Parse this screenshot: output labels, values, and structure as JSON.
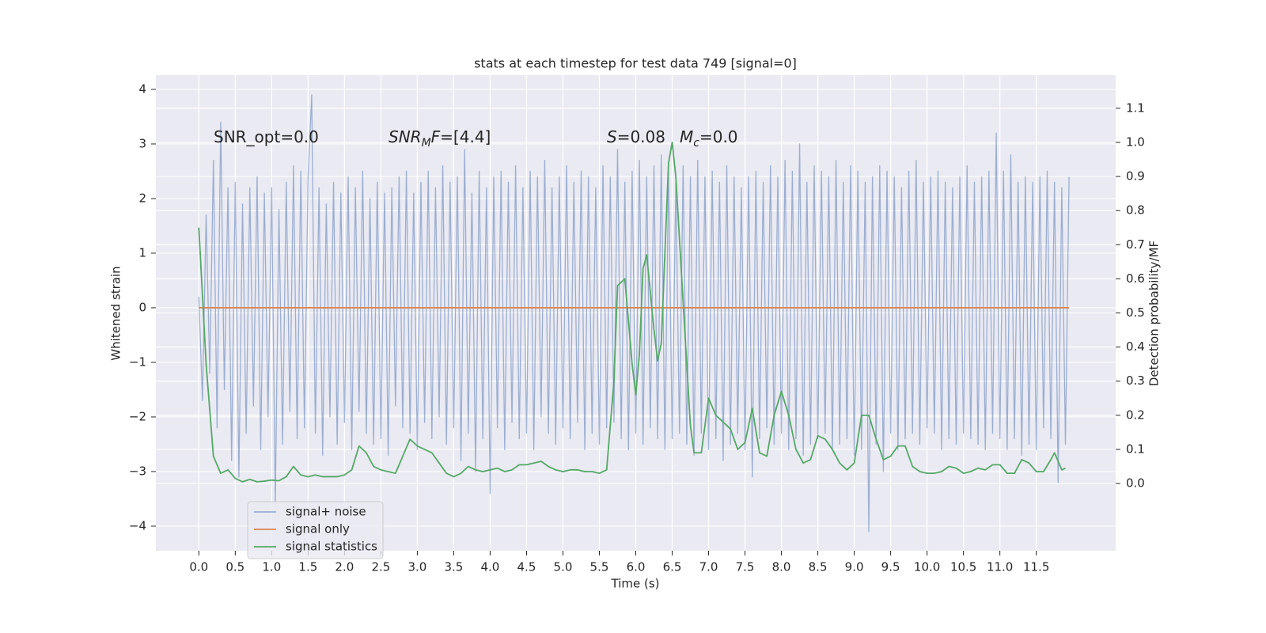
{
  "chart_data": {
    "type": "line",
    "title": "stats at each timestep for test data 749 [signal=0]",
    "xlabel": "Time (s)",
    "ylabel": "Whitened strain",
    "y2label": "Detection probability/MF",
    "xlim": [
      -0.59,
      12.59
    ],
    "ylim": [
      -4.45,
      4.26
    ],
    "y2lim": [
      -0.197,
      1.197
    ],
    "xticks": [
      {
        "value": 0,
        "label": "0.0"
      },
      0.5,
      {
        "value": 1,
        "label": "1.0"
      },
      1.5,
      {
        "value": 2,
        "label": "2.0"
      },
      2.5,
      {
        "value": 3,
        "label": "3.0"
      },
      3.5,
      {
        "value": 4,
        "label": "4.0"
      },
      4.5,
      {
        "value": 5,
        "label": "5.0"
      },
      5.5,
      {
        "value": 6,
        "label": "6.0"
      },
      6.5,
      {
        "value": 7,
        "label": "7.0"
      },
      7.5,
      {
        "value": 8,
        "label": "8.0"
      },
      8.5,
      {
        "value": 9,
        "label": "9.0"
      },
      9.5,
      {
        "value": 10,
        "label": "10.0"
      },
      10.5,
      {
        "value": 11,
        "label": "11.0"
      },
      11.5
    ],
    "yticks": [
      {
        "value": -4,
        "label": "−4"
      },
      {
        "value": -3,
        "label": "−3"
      },
      {
        "value": -2,
        "label": "−2"
      },
      {
        "value": -1,
        "label": "−1"
      },
      0,
      1,
      2,
      3,
      4
    ],
    "y2ticks": [
      {
        "value": 0,
        "label": "0.0"
      },
      0.1,
      0.2,
      0.3,
      0.4,
      0.5,
      0.6,
      0.7,
      0.8,
      0.9,
      {
        "value": 1,
        "label": "1.0"
      },
      1.1
    ],
    "grid": true,
    "legend": "lower left",
    "annotations": [
      [
        {
          "t": "SNR_opt=0.0"
        }
      ],
      [
        {
          "t": "SNR",
          "style": "italic"
        },
        {
          "t": "M",
          "style": "sub"
        },
        {
          "t": "F",
          "style": "italic"
        },
        {
          "t": "=[4.4]"
        }
      ],
      [
        {
          "t": "S",
          "style": "italic"
        },
        {
          "t": "=0.08"
        }
      ],
      [
        {
          "t": "M",
          "style": "italic"
        },
        {
          "t": "c",
          "style": "sub"
        },
        {
          "t": "=0.0"
        }
      ]
    ],
    "series": [
      {
        "name": "signal+ noise",
        "color": "#4c72b0",
        "alpha": 0.5,
        "x": [
          0,
          0.05,
          0.1,
          0.15,
          0.2,
          0.25,
          0.3,
          0.35,
          0.4,
          0.45,
          0.5,
          0.55,
          0.6,
          0.65,
          0.7,
          0.75,
          0.8,
          0.85,
          0.9,
          0.95,
          1,
          1.05,
          1.1,
          1.15,
          1.2,
          1.25,
          1.3,
          1.35,
          1.4,
          1.45,
          1.5,
          1.55,
          1.6,
          1.65,
          1.7,
          1.75,
          1.8,
          1.85,
          1.9,
          1.95,
          2,
          2.05,
          2.1,
          2.15,
          2.2,
          2.25,
          2.3,
          2.35,
          2.4,
          2.45,
          2.5,
          2.55,
          2.6,
          2.65,
          2.7,
          2.75,
          2.8,
          2.85,
          2.9,
          2.95,
          3,
          3.05,
          3.1,
          3.15,
          3.2,
          3.25,
          3.3,
          3.35,
          3.4,
          3.45,
          3.5,
          3.55,
          3.6,
          3.65,
          3.7,
          3.75,
          3.8,
          3.85,
          3.9,
          3.95,
          4,
          4.05,
          4.1,
          4.15,
          4.2,
          4.25,
          4.3,
          4.35,
          4.4,
          4.45,
          4.5,
          4.55,
          4.6,
          4.65,
          4.7,
          4.75,
          4.8,
          4.85,
          4.9,
          4.95,
          5,
          5.05,
          5.1,
          5.15,
          5.2,
          5.25,
          5.3,
          5.35,
          5.4,
          5.45,
          5.5,
          5.55,
          5.6,
          5.65,
          5.7,
          5.75,
          5.8,
          5.85,
          5.9,
          5.95,
          6,
          6.05,
          6.1,
          6.15,
          6.2,
          6.25,
          6.3,
          6.35,
          6.4,
          6.45,
          6.5,
          6.55,
          6.6,
          6.65,
          6.7,
          6.75,
          6.8,
          6.85,
          6.9,
          6.95,
          7,
          7.05,
          7.1,
          7.15,
          7.2,
          7.25,
          7.3,
          7.35,
          7.4,
          7.45,
          7.5,
          7.55,
          7.6,
          7.65,
          7.7,
          7.75,
          7.8,
          7.85,
          7.9,
          7.95,
          8,
          8.05,
          8.1,
          8.15,
          8.2,
          8.25,
          8.3,
          8.35,
          8.4,
          8.45,
          8.5,
          8.55,
          8.6,
          8.65,
          8.7,
          8.75,
          8.8,
          8.85,
          8.9,
          8.95,
          9,
          9.05,
          9.1,
          9.15,
          9.2,
          9.25,
          9.3,
          9.35,
          9.4,
          9.45,
          9.5,
          9.55,
          9.6,
          9.65,
          9.7,
          9.75,
          9.8,
          9.85,
          9.9,
          9.95,
          10,
          10.05,
          10.1,
          10.15,
          10.2,
          10.25,
          10.3,
          10.35,
          10.4,
          10.45,
          10.5,
          10.55,
          10.6,
          10.65,
          10.7,
          10.75,
          10.8,
          10.85,
          10.9,
          10.95,
          11,
          11.05,
          11.1,
          11.15,
          11.2,
          11.25,
          11.3,
          11.35,
          11.4,
          11.45,
          11.5,
          11.55,
          11.6,
          11.65,
          11.7,
          11.75,
          11.8,
          11.85,
          11.9,
          11.95
        ],
        "values": [
          0.2,
          -1.7,
          1.7,
          -1.2,
          2.7,
          -2.2,
          3.4,
          -1.5,
          2.2,
          -2.8,
          2.3,
          -3.1,
          1.9,
          -2.3,
          2.2,
          -1.8,
          2.4,
          -2.6,
          2.1,
          -2.0,
          2.2,
          -3.6,
          1.8,
          -2.5,
          2.3,
          -1.9,
          2.6,
          -2.4,
          2.5,
          -2.2,
          2.4,
          3.9,
          -2.3,
          2.2,
          -2.7,
          1.9,
          -2.0,
          2.3,
          -2.5,
          2.1,
          -2.1,
          2.4,
          -2.6,
          2.2,
          -1.9,
          2.5,
          -2.3,
          2.0,
          -2.5,
          2.3,
          -2.4,
          2.1,
          -2.7,
          2.2,
          -1.8,
          2.4,
          -2.2,
          2.5,
          -2.3,
          2.1,
          -2.6,
          2.3,
          -2.1,
          2.5,
          -2.4,
          2.2,
          -2.0,
          2.6,
          -2.5,
          2.3,
          -2.2,
          2.4,
          -2.8,
          2.9,
          -2.3,
          2.1,
          -3.0,
          2.5,
          -2.4,
          2.2,
          -3.4,
          2.4,
          -2.2,
          2.5,
          -2.6,
          2.3,
          -2.1,
          2.6,
          -2.4,
          2.2,
          -2.3,
          2.5,
          -2.6,
          2.4,
          -2.0,
          2.7,
          -2.3,
          2.2,
          -2.5,
          2.4,
          -2.2,
          2.6,
          -2.4,
          2.3,
          -2.1,
          2.5,
          -2.6,
          2.4,
          -2.3,
          2.2,
          -2.5,
          2.6,
          -2.2,
          2.4,
          -2.1,
          2.9,
          -2.4,
          2.3,
          -2.6,
          2.5,
          -2.3,
          2.7,
          -2.5,
          2.4,
          -2.2,
          2.6,
          -2.4,
          2.8,
          -2.6,
          2.5,
          -2.4,
          2.3,
          -2.3,
          2.6,
          -2.5,
          2.4,
          -2.7,
          2.7,
          -2.3,
          2.4,
          -2.6,
          2.5,
          -2.4,
          2.3,
          -2.8,
          2.6,
          -2.5,
          2.4,
          -2.3,
          2.2,
          -2.6,
          2.4,
          -3.1,
          2.5,
          -2.4,
          2.3,
          -2.2,
          2.6,
          -2.5,
          2.4,
          -2.3,
          2.7,
          -2.6,
          2.5,
          -2.4,
          3.0,
          -2.7,
          2.3,
          -2.5,
          2.6,
          -2.4,
          2.5,
          -2.3,
          2.4,
          -2.6,
          2.7,
          -2.5,
          2.3,
          -2.4,
          2.6,
          -2.7,
          2.5,
          -2.6,
          2.3,
          -4.1,
          2.4,
          -2.5,
          2.6,
          -3.0,
          2.5,
          -2.3,
          2.4,
          -2.6,
          2.2,
          -2.4,
          2.5,
          -2.3,
          2.7,
          -2.5,
          2.3,
          -2.2,
          2.4,
          -2.3,
          2.5,
          -2.6,
          2.3,
          -2.4,
          2.2,
          -2.5,
          2.4,
          -2.3,
          2.6,
          -2.4,
          2.3,
          -2.5,
          2.4,
          -2.6,
          2.5,
          -2.3,
          3.2,
          -2.4,
          2.5,
          -2.6,
          2.8,
          -2.4,
          2.3,
          -2.7,
          2.4,
          -2.5,
          2.3,
          -2.6,
          2.4,
          -2.2,
          2.5,
          -2.4,
          2.3,
          -3.2,
          2.2,
          -2.5,
          2.4
        ]
      },
      {
        "name": "signal only",
        "color": "#dd8452",
        "x": [
          0,
          11.95
        ],
        "values": [
          0,
          0
        ]
      },
      {
        "name": "signal statistics",
        "color": "#55a868",
        "axis": "y2",
        "x": [
          0,
          0.1,
          0.2,
          0.3,
          0.4,
          0.5,
          0.6,
          0.7,
          0.8,
          0.9,
          1.0,
          1.1,
          1.2,
          1.3,
          1.4,
          1.5,
          1.6,
          1.7,
          1.8,
          1.9,
          2.0,
          2.1,
          2.2,
          2.3,
          2.4,
          2.5,
          2.6,
          2.7,
          2.8,
          2.9,
          3.0,
          3.1,
          3.2,
          3.3,
          3.4,
          3.5,
          3.6,
          3.7,
          3.8,
          3.9,
          4.0,
          4.1,
          4.2,
          4.3,
          4.4,
          4.5,
          4.6,
          4.7,
          4.8,
          4.9,
          5.0,
          5.1,
          5.2,
          5.3,
          5.4,
          5.5,
          5.6,
          5.7,
          5.75,
          5.85,
          5.95,
          6.0,
          6.05,
          6.1,
          6.15,
          6.25,
          6.3,
          6.35,
          6.45,
          6.5,
          6.55,
          6.7,
          6.75,
          6.8,
          6.9,
          7.0,
          7.1,
          7.2,
          7.3,
          7.4,
          7.5,
          7.6,
          7.7,
          7.8,
          7.9,
          8.0,
          8.1,
          8.2,
          8.3,
          8.4,
          8.5,
          8.6,
          8.7,
          8.8,
          8.9,
          9.0,
          9.1,
          9.2,
          9.3,
          9.4,
          9.5,
          9.6,
          9.7,
          9.8,
          9.9,
          10.0,
          10.1,
          10.2,
          10.3,
          10.4,
          10.5,
          10.6,
          10.7,
          10.8,
          10.9,
          11.0,
          11.1,
          11.2,
          11.3,
          11.4,
          11.5,
          11.6,
          11.7,
          11.75,
          11.85,
          11.9
        ],
        "values": [
          0.75,
          0.35,
          0.08,
          0.03,
          0.04,
          0.015,
          0.005,
          0.012,
          0.005,
          0.007,
          0.01,
          0.008,
          0.02,
          0.05,
          0.025,
          0.02,
          0.025,
          0.02,
          0.02,
          0.02,
          0.025,
          0.04,
          0.11,
          0.09,
          0.05,
          0.04,
          0.035,
          0.03,
          0.08,
          0.13,
          0.11,
          0.1,
          0.09,
          0.06,
          0.03,
          0.02,
          0.03,
          0.05,
          0.04,
          0.035,
          0.04,
          0.045,
          0.035,
          0.04,
          0.055,
          0.055,
          0.06,
          0.065,
          0.05,
          0.04,
          0.035,
          0.04,
          0.04,
          0.035,
          0.035,
          0.03,
          0.04,
          0.3,
          0.58,
          0.6,
          0.35,
          0.26,
          0.38,
          0.63,
          0.67,
          0.45,
          0.36,
          0.41,
          0.94,
          1.0,
          0.9,
          0.35,
          0.17,
          0.09,
          0.09,
          0.25,
          0.2,
          0.18,
          0.16,
          0.1,
          0.12,
          0.22,
          0.09,
          0.08,
          0.2,
          0.27,
          0.2,
          0.1,
          0.06,
          0.07,
          0.14,
          0.13,
          0.1,
          0.06,
          0.04,
          0.06,
          0.2,
          0.2,
          0.13,
          0.07,
          0.08,
          0.11,
          0.11,
          0.05,
          0.035,
          0.03,
          0.03,
          0.035,
          0.05,
          0.045,
          0.03,
          0.035,
          0.045,
          0.04,
          0.055,
          0.055,
          0.03,
          0.03,
          0.07,
          0.06,
          0.035,
          0.035,
          0.07,
          0.09,
          0.04,
          0.045
        ]
      }
    ]
  }
}
